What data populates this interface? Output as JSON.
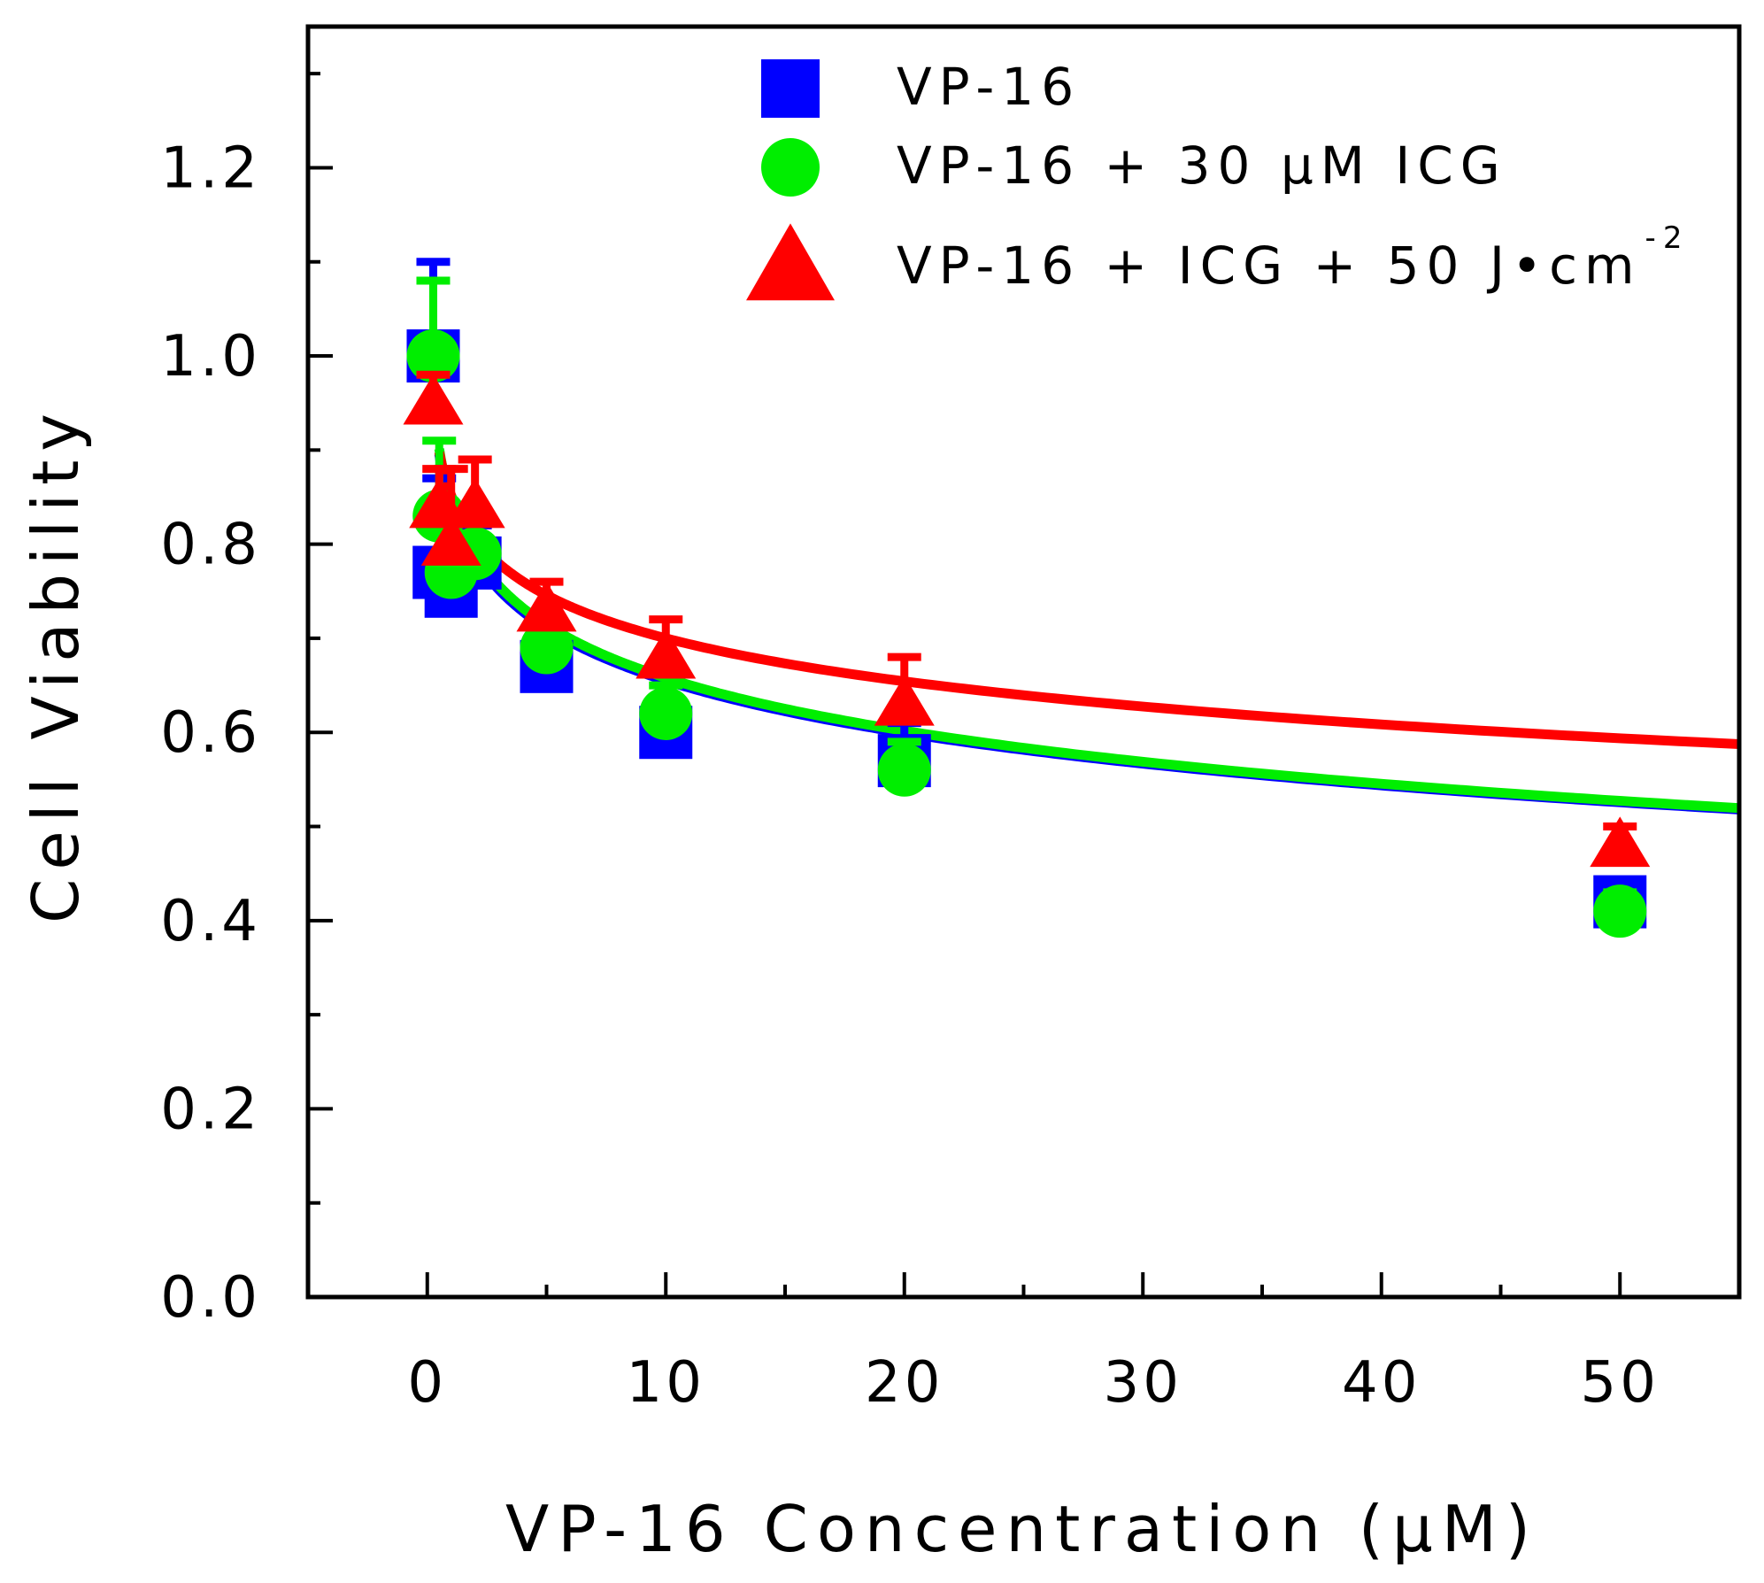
{
  "chart_data": {
    "type": "scatter",
    "xlabel": "VP-16 Concentration (μM)",
    "ylabel": "Cell Viability",
    "xlim": [
      -5,
      55
    ],
    "ylim": [
      0,
      1.35
    ],
    "xticks": [
      0,
      10,
      20,
      30,
      40,
      50
    ],
    "xtick_labels": [
      "0",
      "10",
      "20",
      "30",
      "40",
      "50"
    ],
    "yticks": [
      0.0,
      0.2,
      0.4,
      0.6,
      0.8,
      1.0,
      1.2
    ],
    "ytick_labels": [
      "0.0",
      "0.2",
      "0.4",
      "0.6",
      "0.8",
      "1.0",
      "1.2"
    ],
    "legend_position": "top-right",
    "series": [
      {
        "name": "VP-16",
        "label_parts": [
          "VP-16"
        ],
        "color": "#0000ff",
        "marker": "square",
        "x": [
          0.25,
          0.5,
          1,
          2,
          5,
          10,
          20,
          50
        ],
        "y": [
          1.0,
          0.77,
          0.75,
          0.78,
          0.67,
          0.6,
          0.57,
          0.42
        ],
        "err": [
          0.1,
          0.1,
          0.03,
          0.04,
          0.03,
          0.03,
          0.04,
          0.02
        ],
        "fit": {
          "a": 0.84,
          "b": 0.185
        }
      },
      {
        "name": "VP-16 + 30 μM ICG",
        "label_parts": [
          "VP-16 + 30 μM ICG"
        ],
        "color": "#00ee00",
        "marker": "circle",
        "x": [
          0.25,
          0.5,
          1,
          2,
          5,
          10,
          20,
          50
        ],
        "y": [
          1.0,
          0.83,
          0.77,
          0.79,
          0.69,
          0.62,
          0.56,
          0.41
        ],
        "err": [
          0.08,
          0.08,
          0.04,
          0.04,
          0.03,
          0.03,
          0.03,
          0.02
        ],
        "fit": {
          "a": 0.845,
          "b": 0.187
        }
      },
      {
        "name": "VP-16 + ICG + 50 J•cm-2",
        "label_parts": [
          "VP-16 + ICG + 50 J•cm",
          "-2"
        ],
        "color": "#ff0000",
        "marker": "triangle",
        "x": [
          0.25,
          0.5,
          1,
          2,
          5,
          10,
          20,
          50
        ],
        "y": [
          0.95,
          0.84,
          0.8,
          0.84,
          0.73,
          0.68,
          0.63,
          0.48
        ],
        "err": [
          0.03,
          0.04,
          0.08,
          0.05,
          0.03,
          0.04,
          0.05,
          0.02
        ],
        "fit": {
          "a": 0.852,
          "b": 0.152
        }
      }
    ]
  }
}
